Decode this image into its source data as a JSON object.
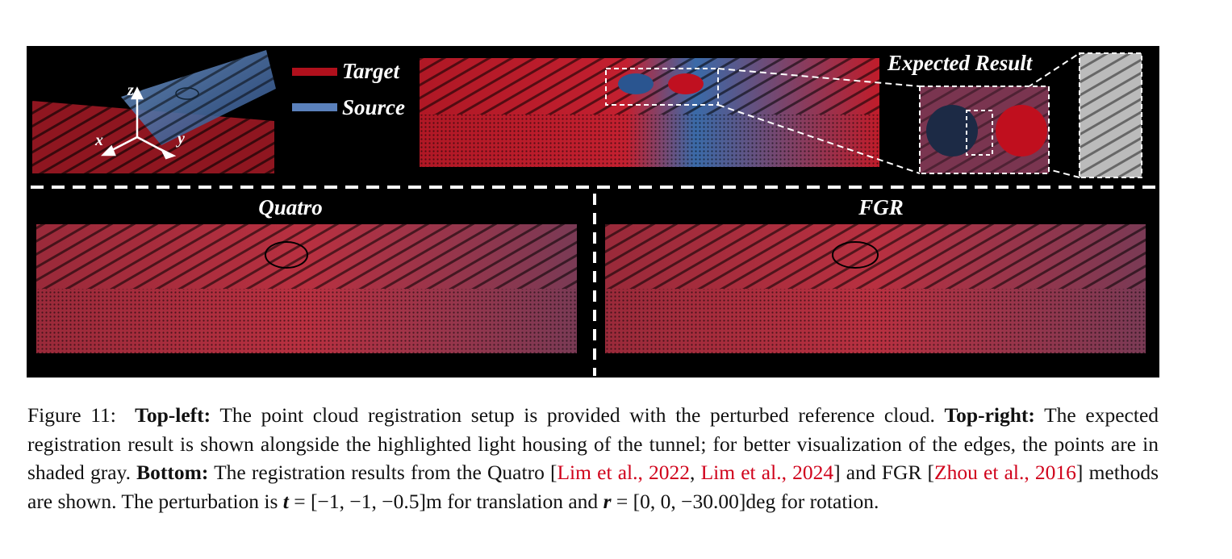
{
  "figure": {
    "legend": [
      "Target",
      "Source"
    ],
    "axes": [
      "z",
      "x",
      "y"
    ],
    "expected_label": "Expected Result",
    "panels": [
      "Quatro",
      "FGR"
    ]
  },
  "caption": {
    "label": "Figure 11:",
    "segments": [
      "Top-left:",
      " The point cloud registration setup is provided with the perturbed reference cloud. ",
      "Top-right:",
      " The expected registration result is shown alongside the highlighted light housing of the tunnel; for better visualization of the edges, the points are in shaded gray. ",
      "Bottom:",
      " The registration results from the Quatro [",
      "Lim et al., 2022",
      ", ",
      "Lim et al., 2024",
      "] and FGR [",
      "Zhou et al., 2016",
      "] methods are shown.  The perturbation is ",
      "t",
      " = [−1, −1, −0.5]m for translation and ",
      "r",
      " = [0, 0, −30.00]deg for rotation."
    ]
  }
}
